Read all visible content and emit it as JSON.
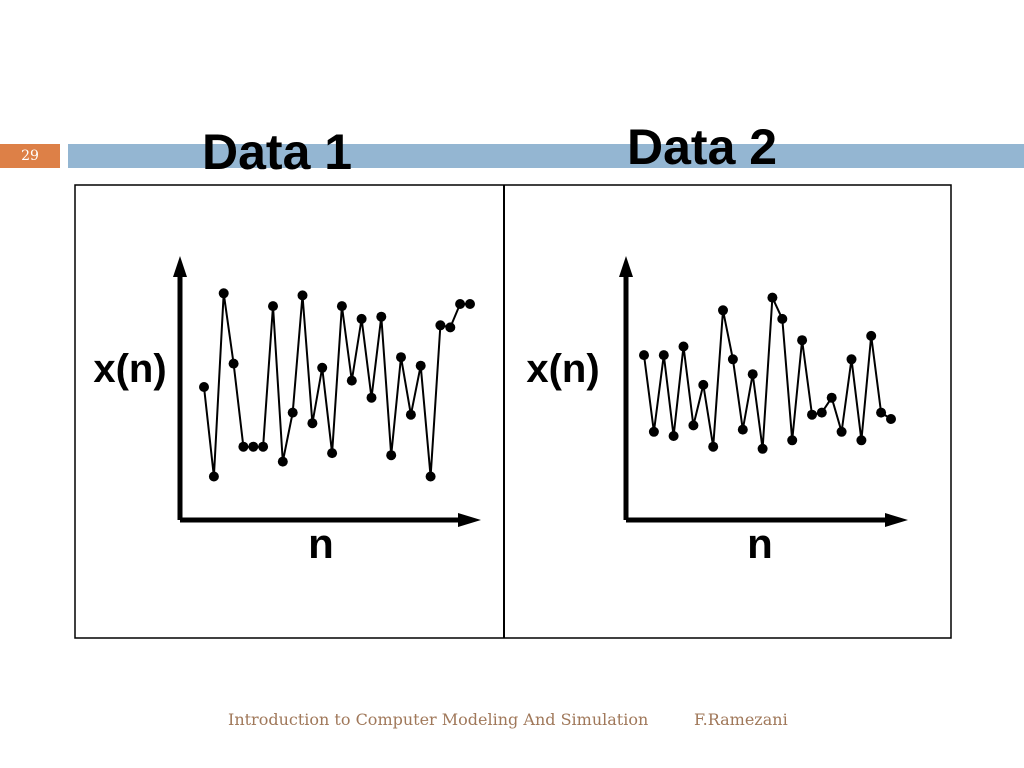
{
  "slide": {
    "page_number": "29",
    "titles": [
      "Data 1",
      "Data 2"
    ],
    "accent_color": "#dd8047",
    "bar_color": "#94b6d2"
  },
  "footer": {
    "title": "Introduction to Computer Modeling And Simulation",
    "author": "F.Ramezani"
  },
  "chart_data": [
    {
      "type": "line",
      "title": "Data 1",
      "xlabel": "n",
      "ylabel": "x(n)",
      "grid": false,
      "x": [
        1,
        2,
        3,
        4,
        5,
        6,
        7,
        8,
        9,
        10,
        11,
        12,
        13,
        14,
        15,
        16,
        17,
        18,
        19,
        20,
        21,
        22,
        23,
        24,
        25,
        26,
        27,
        28
      ],
      "values": [
        0.46,
        0.04,
        0.9,
        0.57,
        0.18,
        0.18,
        0.18,
        0.84,
        0.11,
        0.34,
        0.89,
        0.29,
        0.55,
        0.15,
        0.84,
        0.49,
        0.78,
        0.41,
        0.79,
        0.14,
        0.6,
        0.33,
        0.56,
        0.04,
        0.75,
        0.74,
        0.85,
        0.85
      ],
      "ylim": [
        0,
        1
      ]
    },
    {
      "type": "line",
      "title": "Data 2",
      "xlabel": "n",
      "ylabel": "x(n)",
      "grid": false,
      "x": [
        1,
        2,
        3,
        4,
        5,
        6,
        7,
        8,
        9,
        10,
        11,
        12,
        13,
        14,
        15,
        16,
        17,
        18,
        19,
        20,
        21,
        22,
        23,
        24,
        25,
        26
      ],
      "values": [
        0.61,
        0.25,
        0.61,
        0.23,
        0.65,
        0.28,
        0.47,
        0.18,
        0.82,
        0.59,
        0.26,
        0.52,
        0.17,
        0.88,
        0.78,
        0.21,
        0.68,
        0.33,
        0.34,
        0.41,
        0.25,
        0.59,
        0.21,
        0.7,
        0.34,
        0.31
      ],
      "ylim": [
        0,
        1
      ]
    }
  ]
}
